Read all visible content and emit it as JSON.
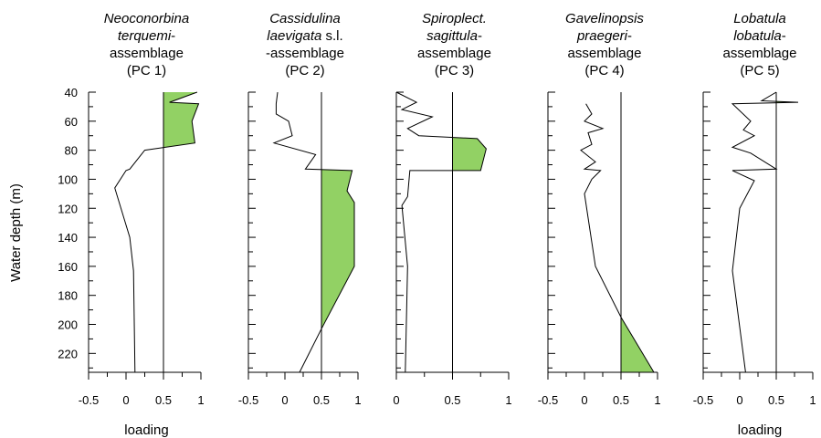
{
  "chart_data": {
    "type": "line",
    "ylabel": "Water depth (m)",
    "y_ticks": [
      40,
      60,
      80,
      100,
      120,
      140,
      160,
      180,
      200,
      220
    ],
    "ylim": [
      40,
      233
    ],
    "fill_color": "#92d164",
    "panels": [
      {
        "title_lines": [
          {
            "parts": [
              {
                "text": "Neoconorbina",
                "italic": true
              }
            ]
          },
          {
            "parts": [
              {
                "text": "terquemi",
                "italic": true
              },
              {
                "text": "-",
                "italic": false
              }
            ]
          },
          {
            "parts": [
              {
                "text": "assemblage",
                "italic": false
              }
            ]
          },
          {
            "parts": [
              {
                "text": "(PC 1)",
                "italic": false
              }
            ]
          }
        ],
        "xlabel": "loading",
        "x_ticks": [
          -0.5,
          0,
          0.5,
          1
        ],
        "x_tick_labels": [
          "-0.5",
          "0",
          "0.5",
          "1"
        ],
        "xlim": [
          -0.5,
          1
        ],
        "threshold": 0.5,
        "points": [
          [
            0.95,
            40
          ],
          [
            0.58,
            47
          ],
          [
            0.97,
            48
          ],
          [
            0.88,
            60
          ],
          [
            0.92,
            75
          ],
          [
            0.25,
            80
          ],
          [
            0.05,
            93
          ],
          [
            0.0,
            94
          ],
          [
            -0.15,
            106
          ],
          [
            0.05,
            140
          ],
          [
            0.1,
            163
          ],
          [
            0.12,
            233
          ]
        ]
      },
      {
        "title_lines": [
          {
            "parts": [
              {
                "text": "Cassidulina",
                "italic": true
              }
            ]
          },
          {
            "parts": [
              {
                "text": "laevigata",
                "italic": true
              },
              {
                "text": " s.l.",
                "italic": false
              }
            ]
          },
          {
            "parts": [
              {
                "text": "-assemblage",
                "italic": false
              }
            ]
          },
          {
            "parts": [
              {
                "text": "(PC 2)",
                "italic": false
              }
            ]
          }
        ],
        "xlabel": "",
        "x_ticks": [
          -0.5,
          0,
          0.5,
          1
        ],
        "x_tick_labels": [
          "-0.5",
          "0",
          "0.5",
          "1"
        ],
        "xlim": [
          -0.5,
          1
        ],
        "threshold": 0.5,
        "points": [
          [
            -0.1,
            40
          ],
          [
            -0.12,
            48
          ],
          [
            -0.12,
            55
          ],
          [
            0.05,
            60
          ],
          [
            0.1,
            70
          ],
          [
            -0.15,
            75
          ],
          [
            0.42,
            83
          ],
          [
            0.28,
            93
          ],
          [
            0.92,
            94
          ],
          [
            0.85,
            108
          ],
          [
            0.95,
            116
          ],
          [
            0.95,
            160
          ],
          [
            0.5,
            203
          ],
          [
            0.2,
            233
          ]
        ]
      },
      {
        "title_lines": [
          {
            "parts": [
              {
                "text": "Spiroplect.",
                "italic": true
              }
            ]
          },
          {
            "parts": [
              {
                "text": "sagittula",
                "italic": true
              },
              {
                "text": "-",
                "italic": false
              }
            ]
          },
          {
            "parts": [
              {
                "text": "assemblage",
                "italic": false
              }
            ]
          },
          {
            "parts": [
              {
                "text": "(PC 3)",
                "italic": false
              }
            ]
          }
        ],
        "xlabel": "",
        "x_ticks": [
          0,
          0.5,
          1
        ],
        "x_tick_labels": [
          "0",
          "0.5",
          "1"
        ],
        "xlim": [
          0,
          1
        ],
        "threshold": 0.5,
        "points": [
          [
            0.0,
            40
          ],
          [
            0.18,
            47
          ],
          [
            0.05,
            52
          ],
          [
            0.32,
            57
          ],
          [
            0.1,
            65
          ],
          [
            0.2,
            70
          ],
          [
            0.72,
            72
          ],
          [
            0.8,
            79
          ],
          [
            0.75,
            94
          ],
          [
            0.12,
            94
          ],
          [
            0.1,
            112
          ],
          [
            0.05,
            118
          ],
          [
            0.1,
            160
          ],
          [
            0.08,
            233
          ]
        ]
      },
      {
        "title_lines": [
          {
            "parts": [
              {
                "text": "Gavelinopsis",
                "italic": true
              }
            ]
          },
          {
            "parts": [
              {
                "text": "praegeri",
                "italic": true
              },
              {
                "text": "-",
                "italic": false
              }
            ]
          },
          {
            "parts": [
              {
                "text": "assemblage",
                "italic": false
              }
            ]
          },
          {
            "parts": [
              {
                "text": "(PC 4)",
                "italic": false
              }
            ]
          }
        ],
        "xlabel": "",
        "x_ticks": [
          -0.5,
          0,
          0.5,
          1
        ],
        "x_tick_labels": [
          "-0.5",
          "0",
          "0.5",
          "1"
        ],
        "xlim": [
          -0.5,
          1
        ],
        "threshold": 0.5,
        "points": [
          [
            0.02,
            48
          ],
          [
            0.1,
            55
          ],
          [
            0.0,
            60
          ],
          [
            0.25,
            65
          ],
          [
            0.05,
            68
          ],
          [
            0.1,
            76
          ],
          [
            -0.05,
            80
          ],
          [
            0.15,
            88
          ],
          [
            0.0,
            93
          ],
          [
            0.22,
            94
          ],
          [
            0.1,
            100
          ],
          [
            0.0,
            110
          ],
          [
            0.15,
            160
          ],
          [
            0.5,
            195
          ],
          [
            0.95,
            233
          ]
        ]
      },
      {
        "title_lines": [
          {
            "parts": [
              {
                "text": "Lobatula",
                "italic": true
              }
            ]
          },
          {
            "parts": [
              {
                "text": "lobatula",
                "italic": true
              },
              {
                "text": "-",
                "italic": false
              }
            ]
          },
          {
            "parts": [
              {
                "text": "assemblage",
                "italic": false
              }
            ]
          },
          {
            "parts": [
              {
                "text": "(PC 5)",
                "italic": false
              }
            ]
          }
        ],
        "xlabel": "loading",
        "x_ticks": [
          -0.5,
          0,
          0.5,
          1
        ],
        "x_tick_labels": [
          "-0.5",
          "0",
          "0.5",
          "1"
        ],
        "xlim": [
          -0.5,
          1
        ],
        "threshold": 0.5,
        "points": [
          [
            0.5,
            40
          ],
          [
            0.3,
            46
          ],
          [
            0.8,
            47
          ],
          [
            -0.1,
            48
          ],
          [
            0.15,
            60
          ],
          [
            0.05,
            66
          ],
          [
            0.2,
            70
          ],
          [
            -0.1,
            78
          ],
          [
            0.15,
            82
          ],
          [
            0.5,
            93
          ],
          [
            -0.1,
            94
          ],
          [
            0.2,
            101
          ],
          [
            0.0,
            120
          ],
          [
            -0.1,
            163
          ],
          [
            0.08,
            233
          ]
        ]
      }
    ]
  }
}
